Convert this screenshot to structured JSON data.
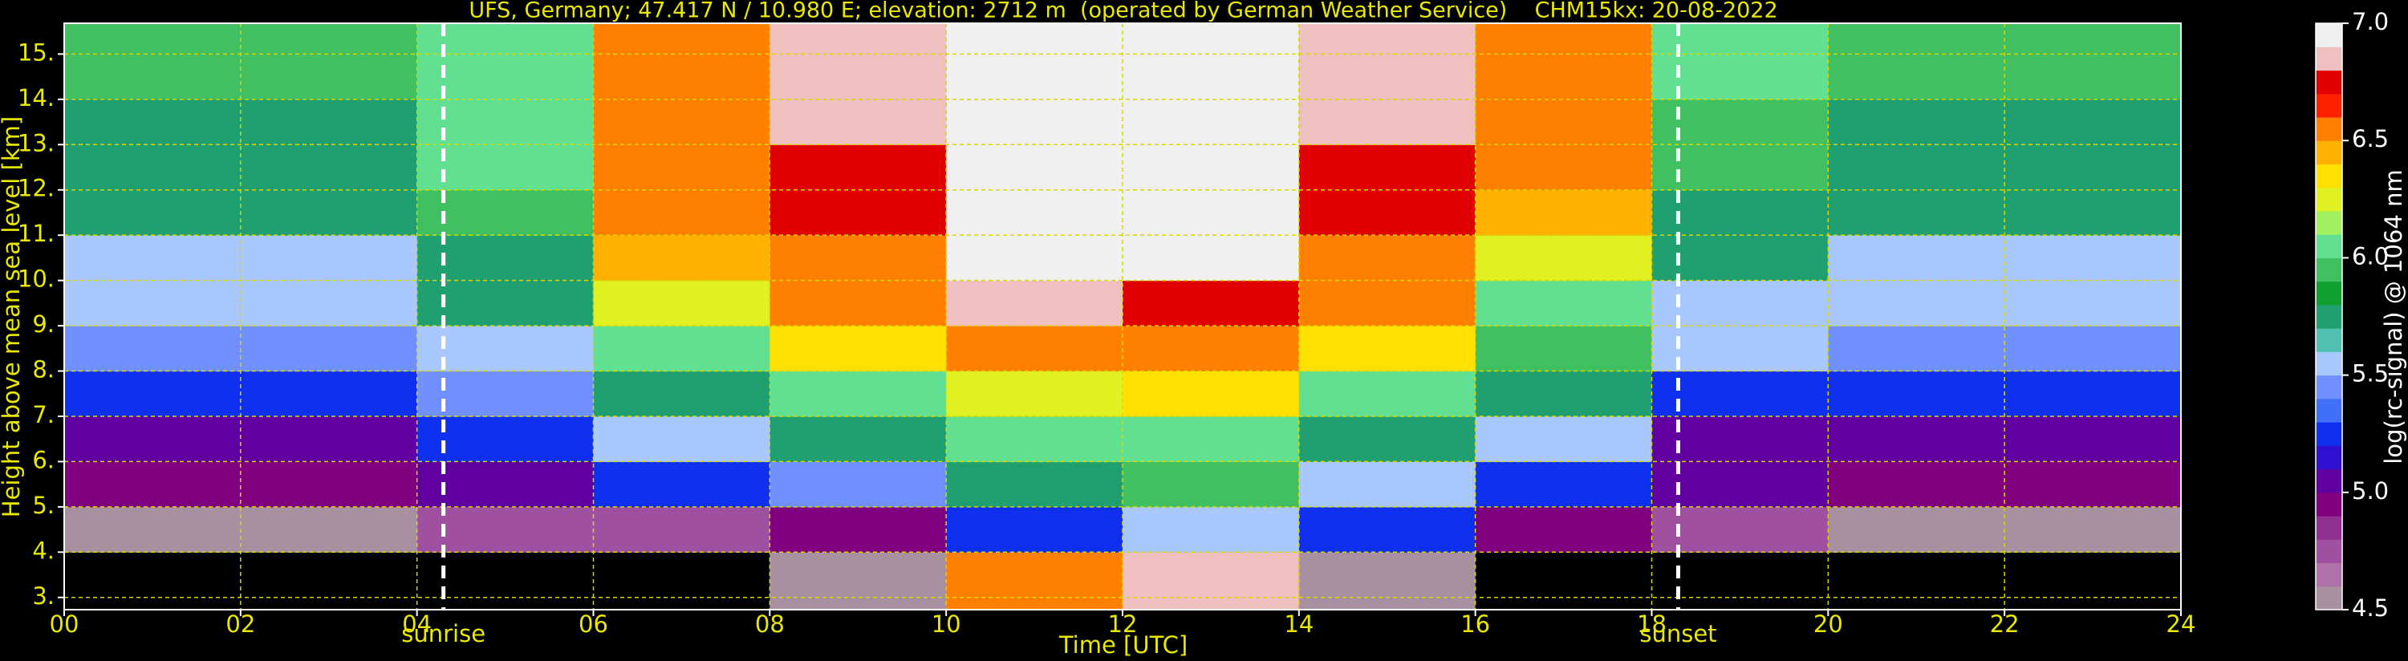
{
  "chart_data": {
    "type": "heatmap",
    "title": "UFS, Germany; 47.417 N / 10.980 E; elevation: 2712 m  (operated by German Weather Service)    CHM15kx: 20-08-2022",
    "x_label": "Time [UTC]",
    "y_label": "Height above mean sea level [km]",
    "xlim": [
      0,
      24
    ],
    "ylim": [
      2.73,
      15.68
    ],
    "xticks": [
      {
        "value": 0,
        "label": "00"
      },
      {
        "value": 2,
        "label": "02"
      },
      {
        "value": 4,
        "label": "04"
      },
      {
        "value": 6,
        "label": "06"
      },
      {
        "value": 8,
        "label": "08"
      },
      {
        "value": 10,
        "label": "10"
      },
      {
        "value": 12,
        "label": "12"
      },
      {
        "value": 14,
        "label": "14"
      },
      {
        "value": 16,
        "label": "16"
      },
      {
        "value": 18,
        "label": "18"
      },
      {
        "value": 20,
        "label": "20"
      },
      {
        "value": 22,
        "label": "22"
      },
      {
        "value": 24,
        "label": "24"
      }
    ],
    "yticks": [
      {
        "value": 3,
        "label": "3."
      },
      {
        "value": 4,
        "label": "4."
      },
      {
        "value": 5,
        "label": "5."
      },
      {
        "value": 6,
        "label": "6."
      },
      {
        "value": 7,
        "label": "7."
      },
      {
        "value": 8,
        "label": "8."
      },
      {
        "value": 9,
        "label": "9."
      },
      {
        "value": 10,
        "label": "10."
      },
      {
        "value": 11,
        "label": "11."
      },
      {
        "value": 12,
        "label": "12."
      },
      {
        "value": 13,
        "label": "13."
      },
      {
        "value": 14,
        "label": "14."
      },
      {
        "value": 15,
        "label": "15."
      }
    ],
    "grid": true,
    "grid_color": "#d8d800",
    "x_bins": [
      0,
      2,
      4,
      6,
      8,
      10,
      12,
      14,
      16,
      18,
      20,
      22,
      24
    ],
    "y_bins": [
      2.73,
      4,
      5,
      6,
      7,
      8,
      9,
      10,
      11,
      12,
      13,
      14,
      15,
      15.68
    ],
    "z": [
      [
        4.3,
        4.3,
        4.4,
        4.4,
        4.6,
        6.6,
        6.8,
        4.6,
        4.4,
        4.3,
        4.3,
        4.3
      ],
      [
        4.6,
        4.6,
        4.7,
        4.8,
        4.9,
        5.3,
        5.5,
        5.2,
        4.9,
        4.7,
        4.6,
        4.6
      ],
      [
        4.9,
        4.9,
        5.0,
        5.2,
        5.4,
        5.8,
        5.9,
        5.6,
        5.3,
        5.0,
        4.9,
        4.9
      ],
      [
        5.0,
        5.0,
        5.2,
        5.5,
        5.7,
        6.0,
        6.1,
        5.8,
        5.5,
        5.1,
        5.0,
        5.0
      ],
      [
        5.2,
        5.2,
        5.4,
        5.8,
        6.0,
        6.2,
        6.3,
        6.0,
        5.7,
        5.3,
        5.2,
        5.2
      ],
      [
        5.4,
        5.4,
        5.6,
        6.0,
        6.3,
        6.5,
        6.5,
        6.3,
        5.9,
        5.5,
        5.4,
        5.4
      ],
      [
        5.5,
        5.5,
        5.7,
        6.2,
        6.5,
        6.8,
        6.7,
        6.5,
        6.1,
        5.6,
        5.5,
        5.5
      ],
      [
        5.6,
        5.6,
        5.8,
        6.4,
        6.6,
        6.9,
        6.9,
        6.6,
        6.2,
        5.7,
        5.6,
        5.6
      ],
      [
        5.7,
        5.7,
        5.9,
        6.5,
        6.7,
        6.9,
        6.9,
        6.7,
        6.4,
        5.8,
        5.7,
        5.7
      ],
      [
        5.8,
        5.8,
        6.0,
        6.6,
        6.7,
        7.0,
        7.0,
        6.7,
        6.5,
        5.9,
        5.8,
        5.8
      ],
      [
        5.8,
        5.8,
        6.1,
        6.6,
        6.8,
        7.0,
        7.0,
        6.8,
        6.5,
        5.9,
        5.8,
        5.8
      ],
      [
        5.9,
        5.9,
        6.1,
        6.6,
        6.8,
        7.0,
        7.0,
        6.8,
        6.6,
        6.0,
        5.9,
        5.9
      ],
      [
        5.9,
        5.9,
        6.1,
        6.6,
        6.8,
        7.0,
        7.0,
        6.8,
        6.6,
        6.0,
        5.9,
        5.9
      ]
    ],
    "vlines": [
      {
        "x": 4.3,
        "label": "sunrise"
      },
      {
        "x": 18.3,
        "label": "sunset"
      }
    ],
    "colorbar": {
      "label": "log(rc-signal) @ 1064 nm",
      "zlim": [
        4.5,
        7.0
      ],
      "zticks": [
        4.5,
        {
          "value": 5,
          "label": "5.0"
        },
        5.5,
        {
          "value": 6,
          "label": "6.0"
        },
        6.5,
        {
          "value": 7,
          "label": "7.0"
        }
      ],
      "under_color": "#000000",
      "colors": [
        "#a890a0",
        "#b070a8",
        "#a050a0",
        "#903090",
        "#800080",
        "#6000a0",
        "#3010d0",
        "#1030f0",
        "#4070f8",
        "#7090ff",
        "#a8c8ff",
        "#50c0b0",
        "#20a070",
        "#10a030",
        "#40c060",
        "#60e090",
        "#a0f060",
        "#e0f020",
        "#ffe000",
        "#ffb000",
        "#ff8000",
        "#ff2000",
        "#e00000",
        "#f0c0c0",
        "#f0f0f0"
      ]
    }
  }
}
